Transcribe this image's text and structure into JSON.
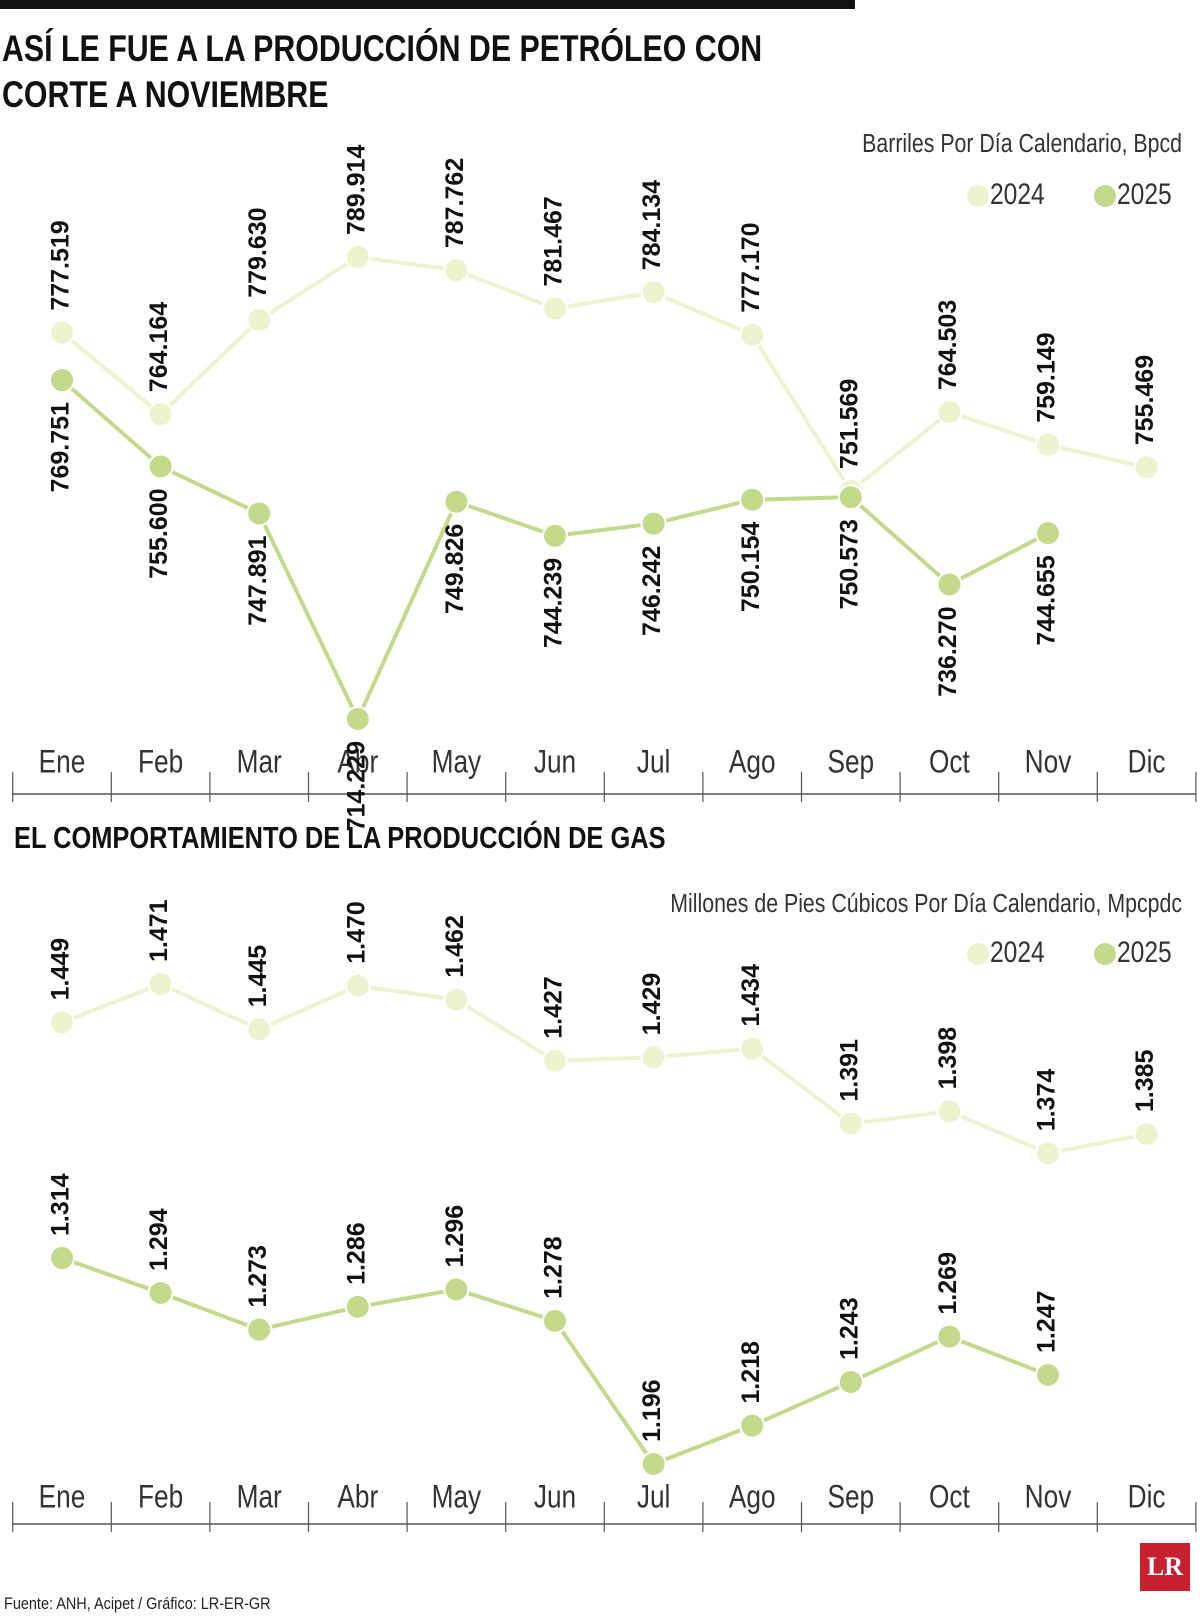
{
  "chart_data": [
    {
      "type": "line",
      "title": "ASÍ LE FUE A LA PRODUCCIÓN DE PETRÓLEO CON CORTE A NOVIEMBRE",
      "subtitle": "Barriles Por Día Calendario, Bpcd",
      "categories": [
        "Ene",
        "Feb",
        "Mar",
        "Abr",
        "May",
        "Jun",
        "Jul",
        "Ago",
        "Sep",
        "Oct",
        "Nov",
        "Dic"
      ],
      "series": [
        {
          "name": "2024",
          "color": "#eef3cf",
          "values": [
            777519,
            764164,
            779630,
            789914,
            787762,
            781467,
            784134,
            777170,
            751569,
            764503,
            759149,
            755469
          ],
          "value_labels": [
            "777.519",
            "764.164",
            "779.630",
            "789.914",
            "787.762",
            "781.467",
            "784.134",
            "777.170",
            "751.569",
            "764.503",
            "759.149",
            "755.469"
          ]
        },
        {
          "name": "2025",
          "color": "#c3da8c",
          "values": [
            769751,
            755600,
            747891,
            714229,
            749826,
            744239,
            746242,
            750154,
            750573,
            736270,
            744655,
            null
          ],
          "value_labels": [
            "769.751",
            "755.600",
            "747.891",
            "714.229",
            "749.826",
            "744.239",
            "746.242",
            "750.154",
            "750.573",
            "736.270",
            "744.655",
            null
          ]
        }
      ]
    },
    {
      "type": "line",
      "title": "EL COMPORTAMIENTO DE LA PRODUCCIÓN DE GAS",
      "subtitle": "Millones de Pies Cúbicos Por Día Calendario, Mpcpdc",
      "categories": [
        "Ene",
        "Feb",
        "Mar",
        "Abr",
        "May",
        "Jun",
        "Jul",
        "Ago",
        "Sep",
        "Oct",
        "Nov",
        "Dic"
      ],
      "series": [
        {
          "name": "2024",
          "color": "#eef3cf",
          "values": [
            1449,
            1471,
            1445,
            1470,
            1462,
            1427,
            1429,
            1434,
            1391,
            1398,
            1374,
            1385
          ],
          "value_labels": [
            "1.449",
            "1.471",
            "1.445",
            "1.470",
            "1.462",
            "1.427",
            "1.429",
            "1.434",
            "1.391",
            "1.398",
            "1.374",
            "1.385"
          ]
        },
        {
          "name": "2025",
          "color": "#c3da8c",
          "values": [
            1314,
            1294,
            1273,
            1286,
            1296,
            1278,
            1196,
            1218,
            1243,
            1269,
            1247,
            null
          ],
          "value_labels": [
            "1.314",
            "1.294",
            "1.273",
            "1.286",
            "1.296",
            "1.278",
            "1.196",
            "1.218",
            "1.243",
            "1.269",
            "1.247",
            null
          ]
        }
      ]
    }
  ],
  "source": "Fuente: ANH, Acipet / Gráfico: LR-ER-GR",
  "logo": "LR"
}
